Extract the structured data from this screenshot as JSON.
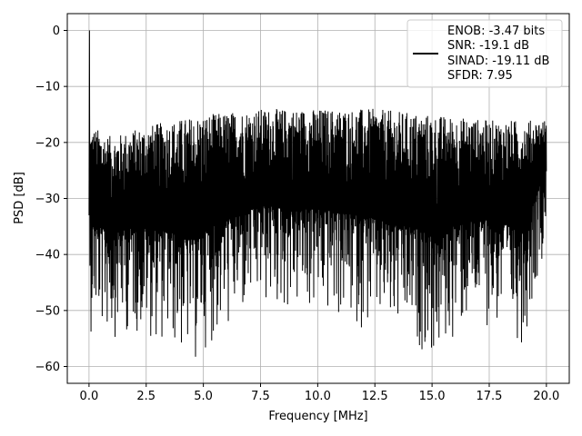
{
  "chart_data": {
    "type": "line",
    "xlabel": "Frequency [MHz]",
    "ylabel": "PSD [dB]",
    "xlim": [
      -0.95,
      21.0
    ],
    "ylim": [
      -63,
      3
    ],
    "xticks": [
      0.0,
      2.5,
      5.0,
      7.5,
      10.0,
      12.5,
      15.0,
      17.5,
      20.0
    ],
    "xtick_labels": [
      "0.0",
      "2.5",
      "5.0",
      "7.5",
      "10.0",
      "12.5",
      "15.0",
      "17.5",
      "20.0"
    ],
    "yticks": [
      0,
      -10,
      -20,
      -30,
      -40,
      -50,
      -60
    ],
    "ytick_labels": [
      "0",
      "−10",
      "−20",
      "−30",
      "−40",
      "−50",
      "−60"
    ],
    "grid": true,
    "legend_position": "top-right",
    "legend_lines": [
      "ENOB: -3.47 bits",
      "SNR: -19.1 dB",
      "SINAD: -19.11 dB",
      "SFDR: 7.95"
    ],
    "line_color": "#000000",
    "noise_floor_range": [
      -60,
      -13
    ],
    "spike": {
      "x": 0.02,
      "y": 0
    },
    "series": [
      {
        "x_start": 0.0,
        "x_end": 20.0,
        "upper_envelope": [
          [
            0.1,
            -17
          ],
          [
            1.0,
            -19
          ],
          [
            2.5,
            -17
          ],
          [
            5.0,
            -15
          ],
          [
            7.5,
            -14
          ],
          [
            10.0,
            -14
          ],
          [
            12.5,
            -14
          ],
          [
            15.0,
            -15
          ],
          [
            17.5,
            -16
          ],
          [
            20.0,
            -16
          ]
        ],
        "lower_envelope": [
          [
            0.5,
            -54
          ],
          [
            1.0,
            -55
          ],
          [
            2.0,
            -54
          ],
          [
            3.3,
            -56
          ],
          [
            4.7,
            -60
          ],
          [
            5.0,
            -57
          ],
          [
            7.5,
            -50
          ],
          [
            10.0,
            -51
          ],
          [
            12.5,
            -54
          ],
          [
            14.5,
            -57
          ],
          [
            15.2,
            -60
          ],
          [
            16.0,
            -55
          ],
          [
            17.0,
            -52
          ],
          [
            19.0,
            -56
          ],
          [
            20.0,
            -37
          ]
        ]
      }
    ]
  }
}
